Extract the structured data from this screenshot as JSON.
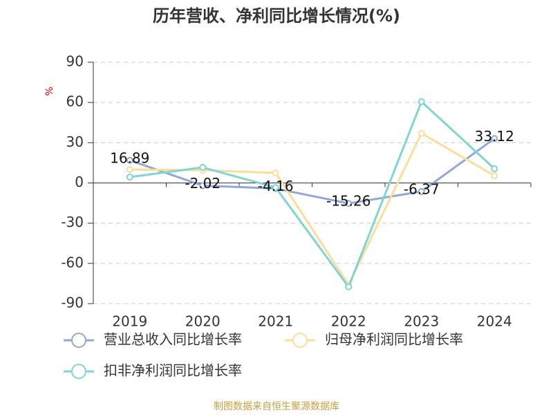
{
  "chart_data": {
    "type": "line",
    "title": "历年营收、净利同比增长情况(%)",
    "y_label": "%",
    "categories": [
      "2019",
      "2020",
      "2021",
      "2022",
      "2023",
      "2024"
    ],
    "series": [
      {
        "name": "营业总收入同比增长率",
        "color": "#8fa8d8",
        "values": [
          16.89,
          -2.02,
          -4.16,
          -15.26,
          -6.37,
          33.12
        ],
        "show_labels": true
      },
      {
        "name": "归母净利润同比增长率",
        "color": "#fddc9c",
        "values": [
          10,
          9.5,
          7.5,
          -76,
          37,
          5.4
        ],
        "show_labels": false
      },
      {
        "name": "扣非净利润同比增长率",
        "color": "#80d4d4",
        "values": [
          4.4,
          11.6,
          -3.4,
          -77.5,
          60.6,
          10.6
        ],
        "show_labels": false
      }
    ],
    "ylim": [
      -90,
      90
    ],
    "yticks": [
      -90,
      -60,
      -30,
      0,
      30,
      60,
      90
    ],
    "grid": true,
    "legend": "bottom",
    "source": "制图数据来自恒生聚源数据库"
  }
}
